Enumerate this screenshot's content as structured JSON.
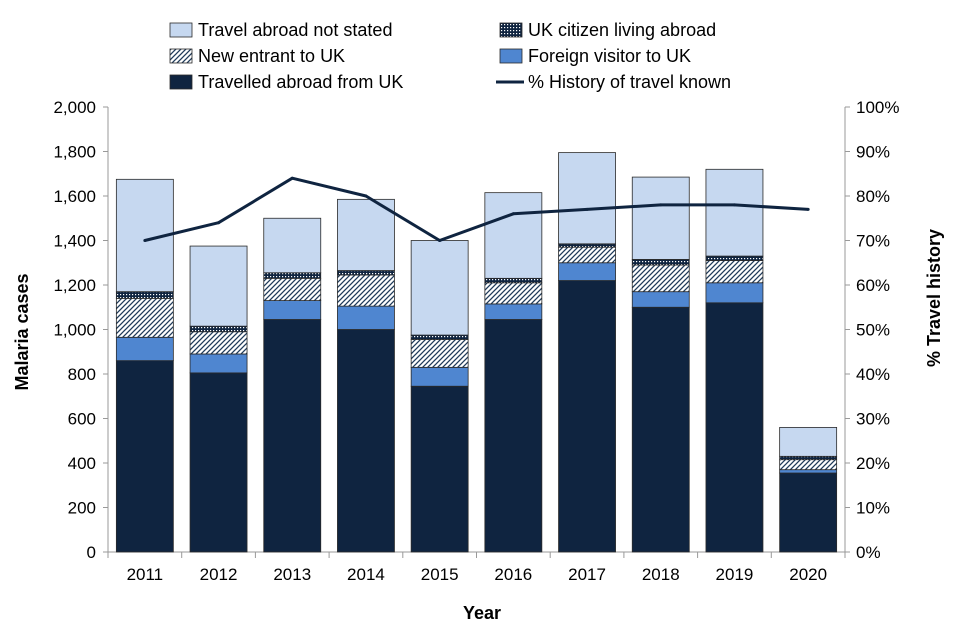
{
  "chart_data": {
    "type": "bar",
    "stacked": true,
    "categories": [
      "2011",
      "2012",
      "2013",
      "2014",
      "2015",
      "2016",
      "2017",
      "2018",
      "2019",
      "2020"
    ],
    "series": [
      {
        "key": "travelled",
        "name": "Travelled abroad from UK",
        "color": "#0f2440",
        "pattern": "solid",
        "values": [
          860,
          805,
          1045,
          1000,
          745,
          1045,
          1220,
          1100,
          1120,
          355
        ]
      },
      {
        "key": "visitor",
        "name": "Foreign visitor to UK",
        "color": "#4f86d0",
        "pattern": "solid",
        "values": [
          105,
          85,
          85,
          105,
          85,
          70,
          80,
          70,
          90,
          15
        ]
      },
      {
        "key": "entrant",
        "name": "New entrant to UK",
        "color": "#1f3b5a",
        "pattern": "hatch",
        "values": [
          175,
          100,
          100,
          140,
          125,
          95,
          70,
          120,
          100,
          45
        ]
      },
      {
        "key": "citizen",
        "name": "UK citizen living abroad",
        "color": "#0f2440",
        "pattern": "dots",
        "values": [
          30,
          25,
          25,
          20,
          20,
          20,
          15,
          25,
          20,
          15
        ]
      },
      {
        "key": "notstated",
        "name": "Travel abroad not stated",
        "color": "#c6d8f0",
        "pattern": "solid",
        "values": [
          505,
          360,
          245,
          320,
          425,
          385,
          410,
          370,
          390,
          130
        ]
      }
    ],
    "line": {
      "name": "% History of travel known",
      "color": "#0f2440",
      "values": [
        70,
        74,
        84,
        80,
        70,
        76,
        77,
        78,
        78,
        77
      ]
    },
    "ylabel": "Malaria cases",
    "y2label": "% Travel history",
    "xlabel": "Year",
    "ylim": [
      0,
      2000
    ],
    "y2lim": [
      0,
      100
    ],
    "yticks": [
      "0",
      "200",
      "400",
      "600",
      "800",
      "1,000",
      "1,200",
      "1,400",
      "1,600",
      "1,800",
      "2,000"
    ],
    "y2ticks": [
      "0%",
      "10%",
      "20%",
      "30%",
      "40%",
      "50%",
      "60%",
      "70%",
      "80%",
      "90%",
      "100%"
    ],
    "legend": {
      "position": "top",
      "order": [
        "notstated",
        "citizen",
        "entrant",
        "visitor",
        "travelled",
        "line"
      ]
    }
  }
}
